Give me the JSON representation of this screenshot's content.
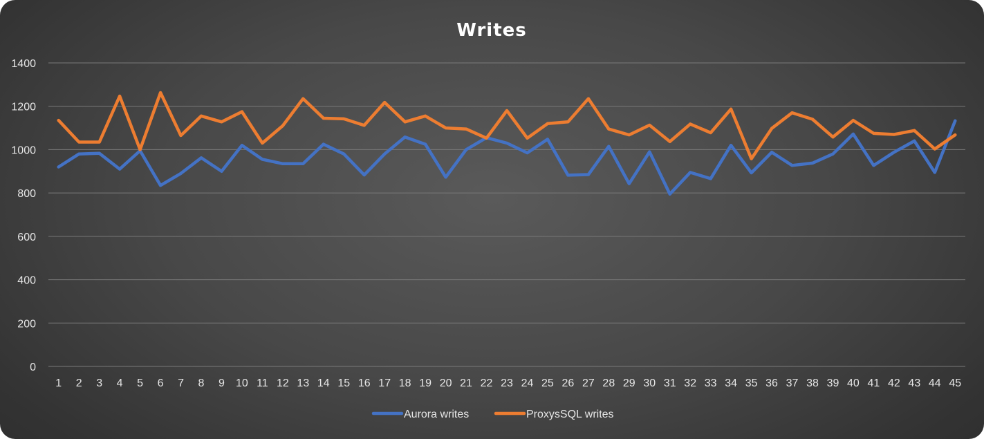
{
  "chart_data": {
    "type": "line",
    "title": "Writes",
    "xlabel": "",
    "ylabel": "",
    "ylim": [
      0,
      1400
    ],
    "yticks": [
      0,
      200,
      400,
      600,
      800,
      1000,
      1200,
      1400
    ],
    "grid": true,
    "legend_position": "bottom",
    "categories": [
      "1",
      "2",
      "3",
      "4",
      "5",
      "6",
      "7",
      "8",
      "9",
      "10",
      "11",
      "12",
      "13",
      "14",
      "15",
      "16",
      "17",
      "18",
      "19",
      "20",
      "21",
      "22",
      "23",
      "24",
      "25",
      "26",
      "27",
      "28",
      "29",
      "30",
      "31",
      "32",
      "33",
      "34",
      "35",
      "36",
      "37",
      "38",
      "39",
      "40",
      "41",
      "42",
      "43",
      "44",
      "45"
    ],
    "series": [
      {
        "name": "Aurora writes",
        "color": "#4472c4",
        "values": [
          920,
          980,
          983,
          910,
          995,
          835,
          890,
          962,
          900,
          1020,
          955,
          935,
          935,
          1025,
          980,
          883,
          980,
          1058,
          1025,
          873,
          1000,
          1055,
          1030,
          985,
          1048,
          882,
          885,
          1015,
          843,
          990,
          795,
          895,
          866,
          1020,
          893,
          988,
          927,
          938,
          980,
          1072,
          927,
          988,
          1040,
          895,
          1133
        ]
      },
      {
        "name": "ProxysSQL writes",
        "color": "#ed7d31",
        "values": [
          1135,
          1035,
          1035,
          1247,
          1000,
          1263,
          1065,
          1155,
          1128,
          1175,
          1030,
          1110,
          1235,
          1145,
          1142,
          1112,
          1218,
          1128,
          1155,
          1100,
          1095,
          1053,
          1180,
          1053,
          1120,
          1128,
          1235,
          1095,
          1068,
          1113,
          1037,
          1118,
          1078,
          1187,
          958,
          1098,
          1170,
          1140,
          1058,
          1135,
          1075,
          1070,
          1088,
          1003,
          1068
        ]
      }
    ]
  }
}
